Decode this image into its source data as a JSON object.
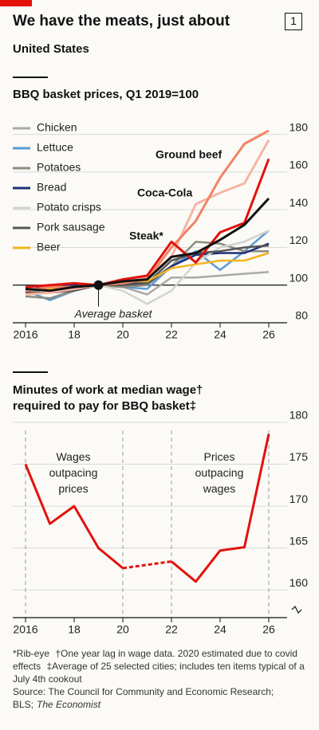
{
  "header": {
    "title": "We have the meats, just about",
    "badge": "1",
    "subtitle": "United States"
  },
  "chart_data": [
    {
      "type": "line",
      "title": "BBQ basket prices, Q1 2019=100",
      "x": [
        2016,
        2017,
        2018,
        2019,
        2020,
        2021,
        2022,
        2023,
        2024,
        2025,
        2026
      ],
      "xlim": [
        2016,
        2026
      ],
      "xticks": [
        2016,
        {
          "value": 2018,
          "label": "18"
        },
        {
          "value": 2020,
          "label": "20"
        },
        {
          "value": 2022,
          "label": "22"
        },
        {
          "value": 2024,
          "label": "24"
        },
        {
          "value": 2026,
          "label": "26"
        }
      ],
      "ylim": [
        80,
        190
      ],
      "yticks": [
        80,
        100,
        120,
        140,
        160,
        180
      ],
      "baseline": 100,
      "grid": true,
      "legend": "top-left",
      "series": [
        {
          "name": "Chicken",
          "color": "#a9a9a9",
          "legend": true,
          "values": [
            96,
            98,
            99,
            100,
            99,
            95,
            104,
            104,
            105,
            106,
            107
          ]
        },
        {
          "name": "Lettuce",
          "color": "#5b9bd5",
          "legend": true,
          "values": [
            97,
            92,
            97,
            100,
            99,
            98,
            110,
            118,
            108,
            118,
            129
          ]
        },
        {
          "name": "Potatoes",
          "color": "#8c8c7e",
          "legend": true,
          "values": [
            94,
            93,
            97,
            100,
            99,
            100,
            110,
            123,
            122,
            118,
            118
          ]
        },
        {
          "name": "Bread",
          "color": "#1f2f7a",
          "legend": true,
          "values": [
            98,
            99,
            100,
            100,
            101,
            101,
            110,
            116,
            117,
            117,
            122
          ]
        },
        {
          "name": "Potato crisps",
          "color": "#d2d2d2",
          "legend": true,
          "values": [
            99,
            97,
            98,
            100,
            97,
            90,
            97,
            112,
            120,
            123,
            129
          ]
        },
        {
          "name": "Pork sausage",
          "color": "#555555",
          "legend": true,
          "values": [
            96,
            96,
            97,
            100,
            100,
            101,
            113,
            117,
            118,
            120,
            121
          ]
        },
        {
          "name": "Beer",
          "color": "#f2b51c",
          "legend": true,
          "values": [
            97,
            98,
            99,
            100,
            102,
            102,
            109,
            111,
            113,
            113,
            117
          ]
        },
        {
          "name": "Coca-Cola",
          "color": "#f6b5a2",
          "legend": false,
          "values": [
            95,
            96,
            98,
            100,
            102,
            104,
            115,
            143,
            149,
            154,
            177
          ]
        },
        {
          "name": "Ground beef",
          "color": "#f08464",
          "legend": false,
          "values": [
            97,
            99,
            99,
            100,
            101,
            103,
            120,
            134,
            157,
            175,
            182
          ]
        },
        {
          "name": "Steak*",
          "color": "#e3120b",
          "legend": false,
          "values": [
            99,
            100,
            101,
            100,
            103,
            105,
            123,
            112,
            128,
            133,
            167
          ]
        },
        {
          "name": "Average basket",
          "color": "#111111",
          "legend": false,
          "marker_index": 3,
          "values": [
            98,
            97,
            99,
            100,
            102,
            103,
            115,
            117,
            124,
            132,
            146
          ]
        }
      ]
    },
    {
      "type": "line",
      "title": "Minutes of work at median wage† required to pay for BBQ basket‡",
      "x": [
        2016,
        2017,
        2018,
        2019,
        2020,
        2021,
        2022,
        2023,
        2024,
        2025,
        2026
      ],
      "values": [
        175,
        167.9,
        170,
        165,
        162.6,
        null,
        163.4,
        161,
        164.7,
        165.1,
        178.6
      ],
      "color": "#e3120b",
      "bridge_gaps": "dashed",
      "xlim": [
        2016,
        2026
      ],
      "xticks": [
        2016,
        {
          "value": 2018,
          "label": "18"
        },
        {
          "value": 2020,
          "label": "20"
        },
        {
          "value": 2022,
          "label": "22"
        },
        {
          "value": 2024,
          "label": "24"
        },
        {
          "value": 2026,
          "label": "26"
        }
      ],
      "ylim": [
        156.7,
        181.7
      ],
      "yticks": [
        160,
        165,
        170,
        175,
        180
      ],
      "grid": true,
      "vlines": [
        2016,
        2020,
        2022,
        2026
      ],
      "annotations": [
        "Wages outpacing prices",
        "Prices outpacing wages"
      ]
    }
  ],
  "footnotes": {
    "notes": [
      "*Rib-eye",
      "†One year lag in wage data. 2020 estimated due to covid effects",
      "‡Average of 25 selected cities; includes ten items typical of a July 4th cookout"
    ],
    "source": [
      "Source: The Council for Community and Economic Research; BLS;",
      "The Economist"
    ]
  }
}
